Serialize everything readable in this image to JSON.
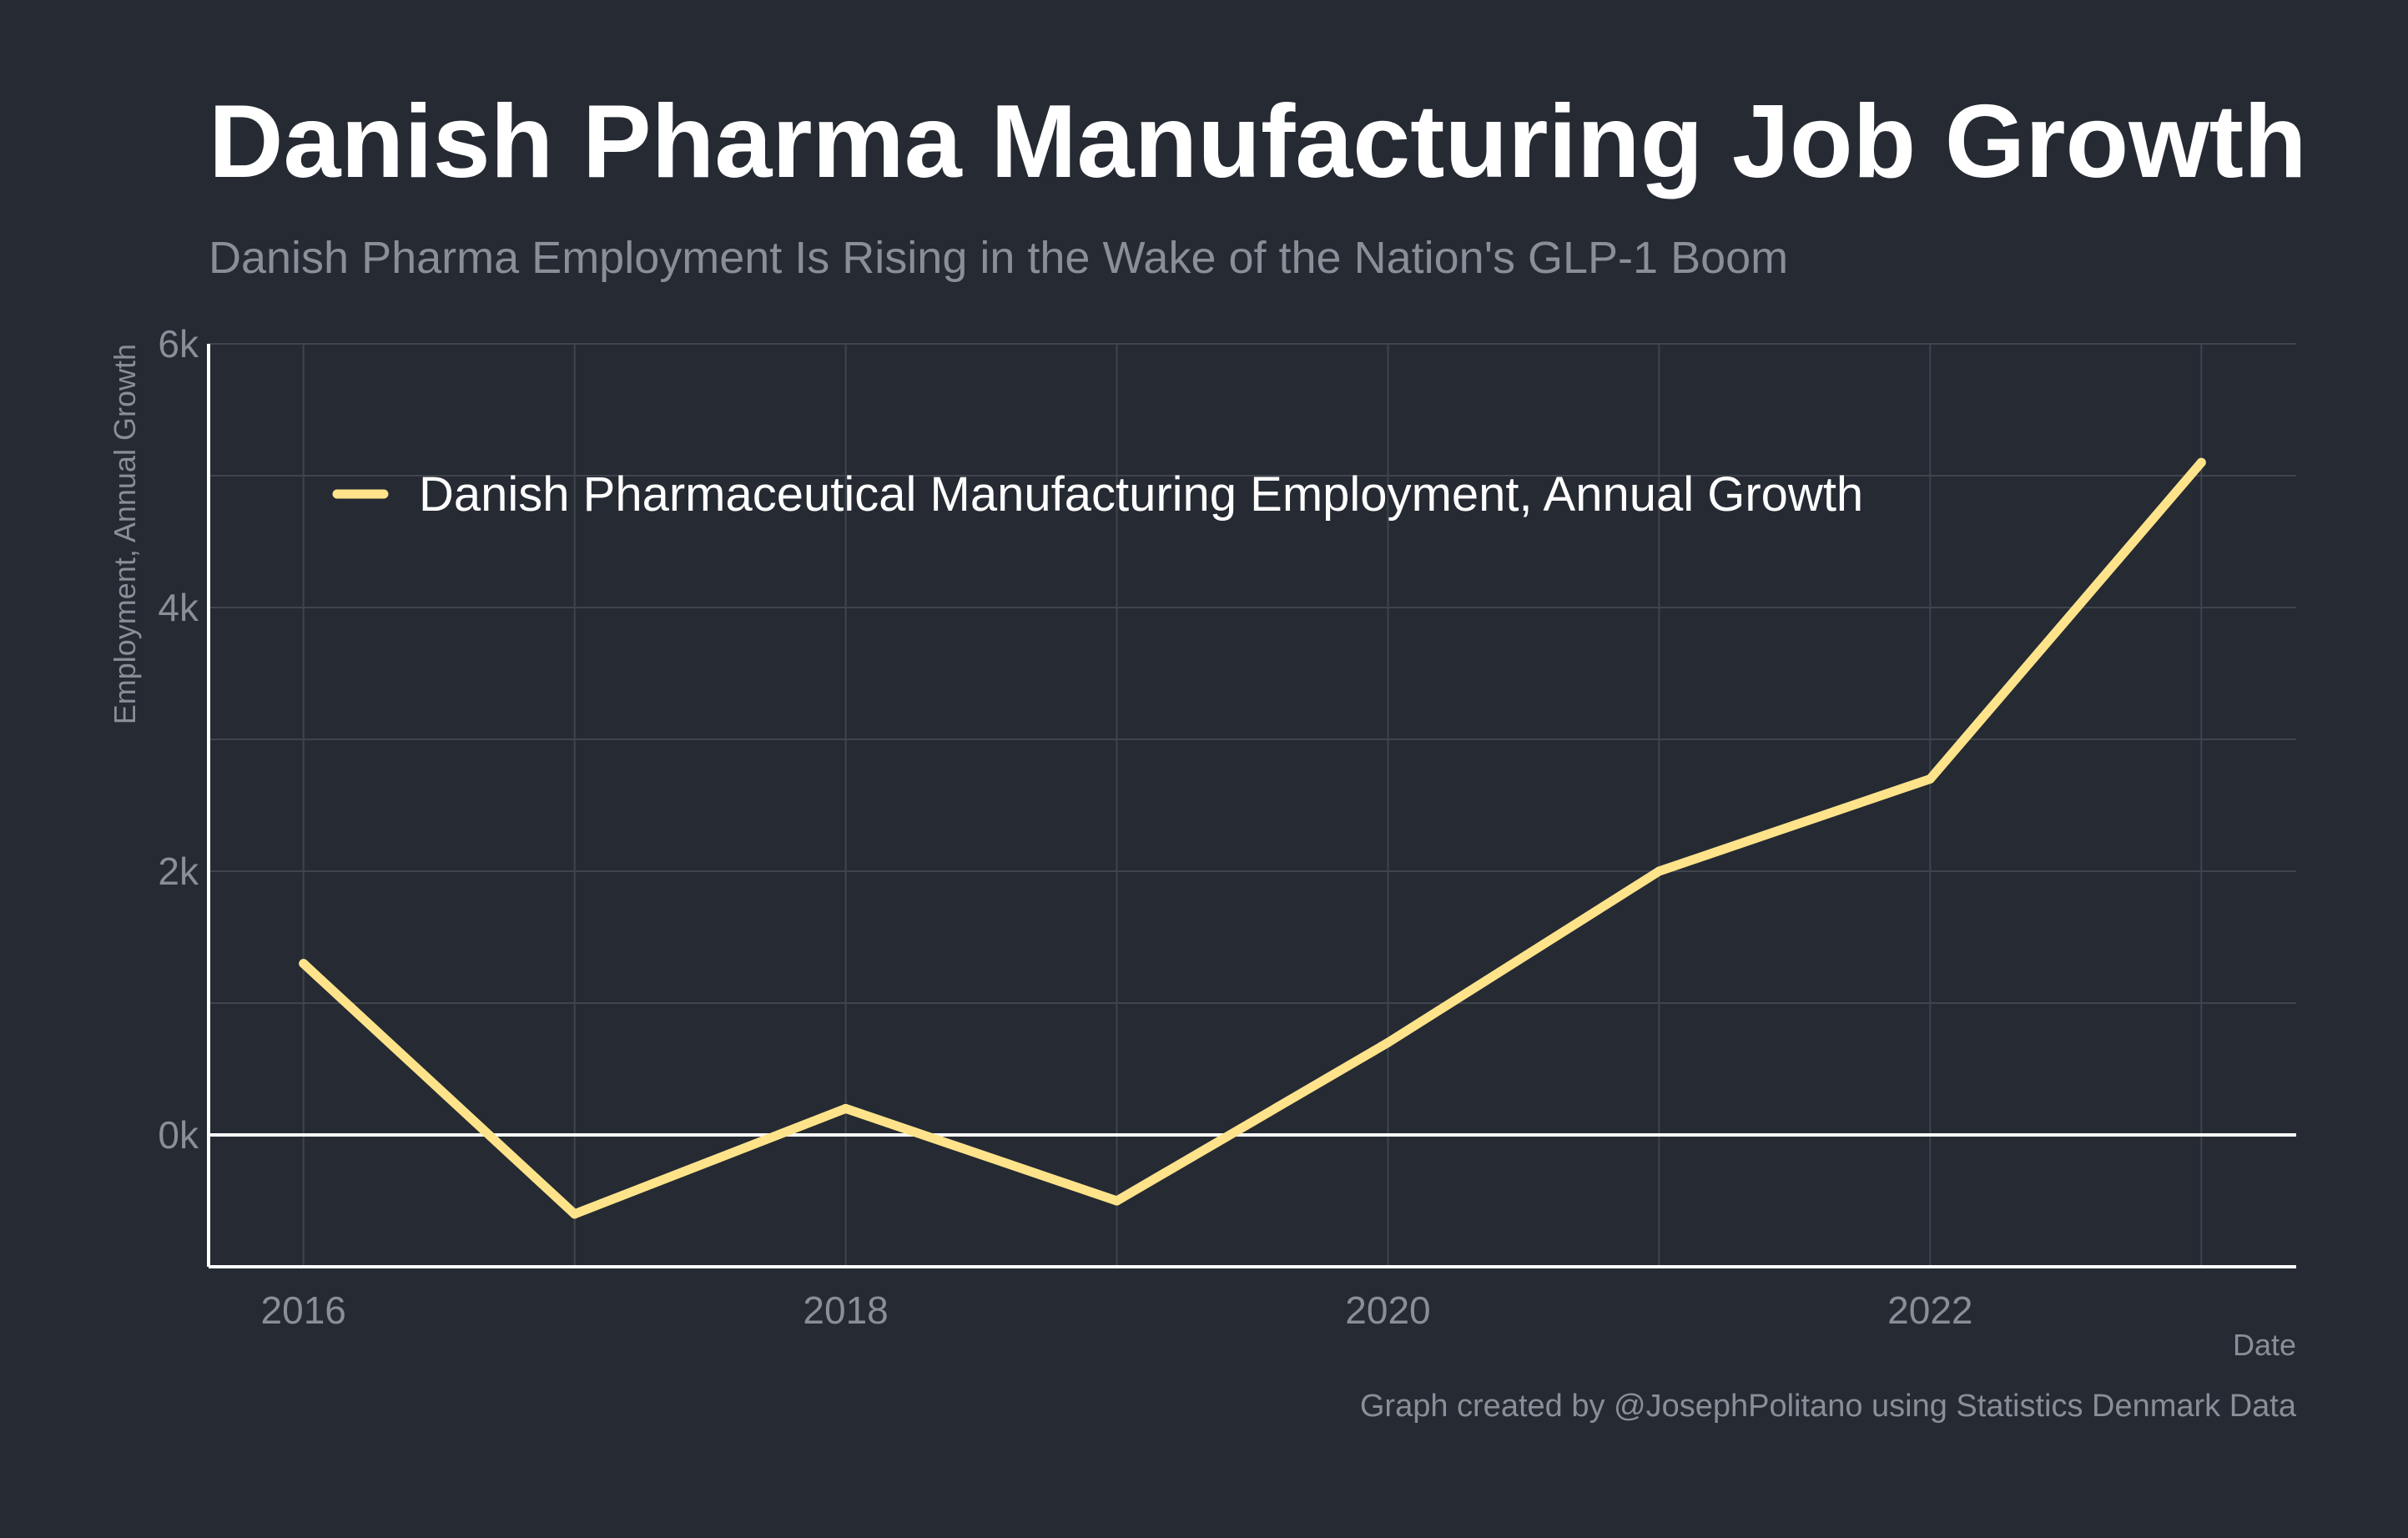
{
  "colors": {
    "background": "#252a33",
    "title": "#ffffff",
    "muted_text": "#8a8e96",
    "grid": "#3f444d",
    "axis": "#ffffff",
    "series": "#ffe38a"
  },
  "chart_data": {
    "type": "line",
    "title": "Danish Pharma Manufacturing Job Growth",
    "subtitle": "Danish Pharma Employment Is Rising in the Wake of the Nation's GLP-1 Boom",
    "xlabel": "Date",
    "ylabel": "Employment, Annual Growth",
    "caption": "Graph created by @JosephPolitano using Statistics Denmark Data",
    "x": [
      2016,
      2017,
      2018,
      2019,
      2020,
      2021,
      2022,
      2023
    ],
    "series": [
      {
        "name": "Danish Pharmaceutical Manufacturing Employment, Annual Growth",
        "values": [
          1300,
          -600,
          200,
          -500,
          700,
          2000,
          2700,
          5100
        ],
        "color": "#ffe38a"
      }
    ],
    "xlim": [
      2015.65,
      2023.35
    ],
    "ylim": [
      -1000,
      6000
    ],
    "x_ticks": [
      2016,
      2018,
      2020,
      2022
    ],
    "x_tick_labels": [
      "2016",
      "2018",
      "2020",
      "2022"
    ],
    "y_ticks": [
      0,
      2000,
      4000,
      6000
    ],
    "y_tick_labels": [
      "0k",
      "2k",
      "4k",
      "6k"
    ],
    "grid": true,
    "zero_line": true,
    "legend_position": "top-left, inside plot"
  }
}
